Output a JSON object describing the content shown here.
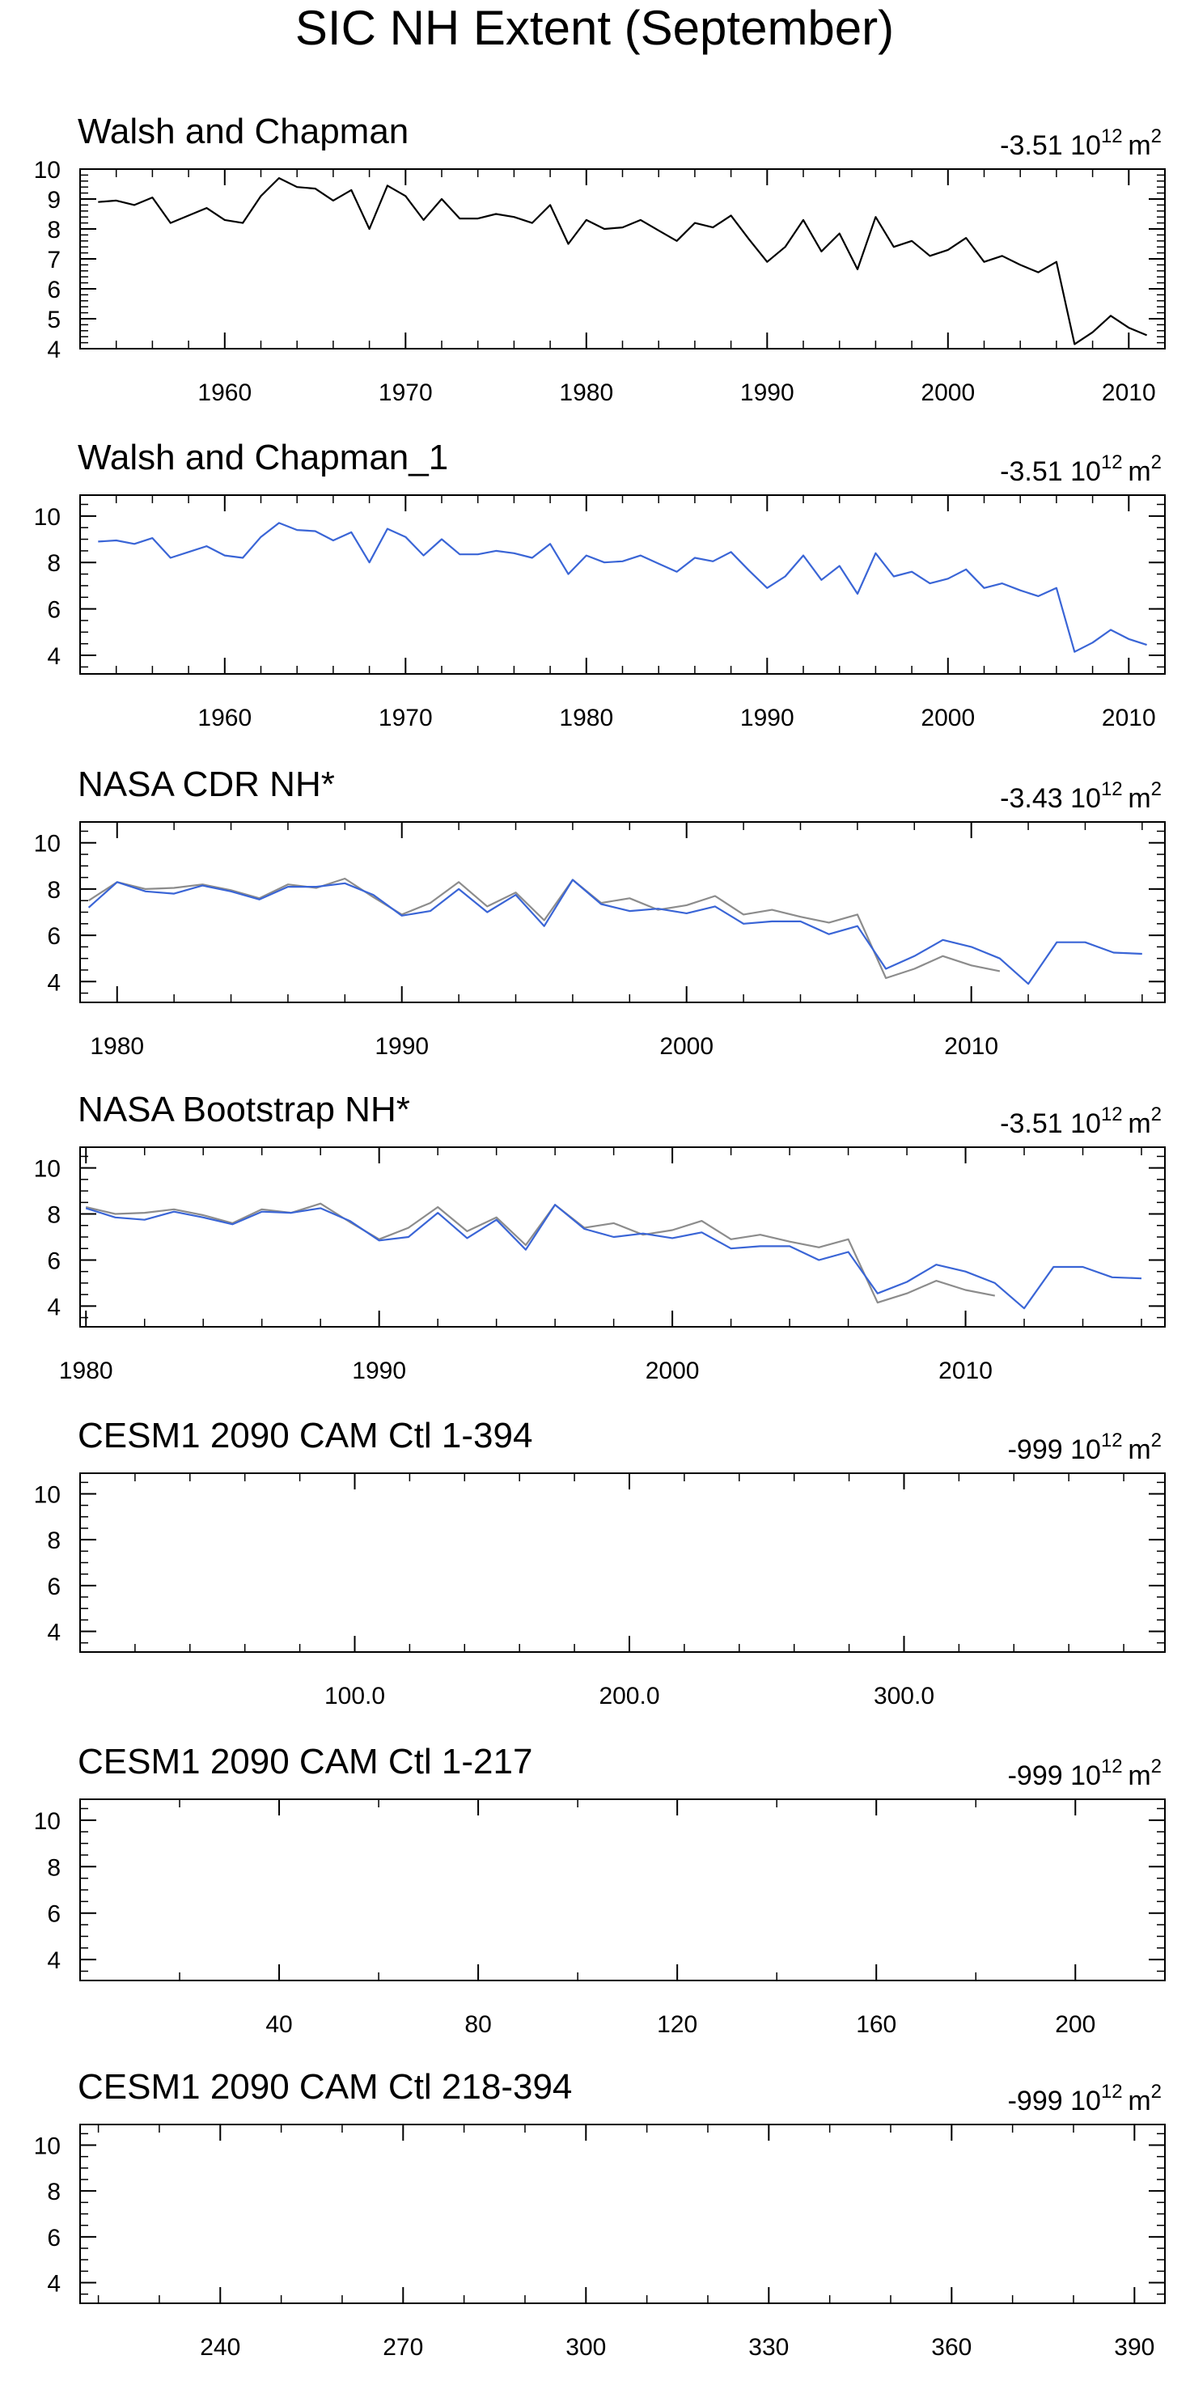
{
  "figure_title": "SIC NH Extent (September)",
  "colors": {
    "black": "#000000",
    "blue": "#3a65d6",
    "gray": "#8c8c8c",
    "axis": "#000000"
  },
  "chart_data": [
    {
      "type": "line",
      "title": "Walsh and Chapman",
      "trend_value": "-3.51",
      "trend_unit_base": "10",
      "trend_unit_exp": "12",
      "trend_unit_suffix": "m",
      "trend_unit_suffix_exp": "2",
      "xlim": [
        1952,
        2012
      ],
      "ylim": [
        4,
        10
      ],
      "y_ticks": [
        4,
        5,
        6,
        7,
        8,
        9,
        10
      ],
      "y_tick_labels": [
        "4",
        "5",
        "6",
        "7",
        "8",
        "9",
        "10"
      ],
      "x_ticks": [
        1960,
        1970,
        1980,
        1990,
        2000,
        2010
      ],
      "x_tick_labels": [
        "1960",
        "1970",
        "1980",
        "1990",
        "2000",
        "2010"
      ],
      "x_minor_step": 2,
      "y_minor_step": 0.2,
      "series": [
        {
          "name": "Walsh and Chapman",
          "color": "#000000",
          "x": [
            1953,
            1954,
            1955,
            1956,
            1957,
            1958,
            1959,
            1960,
            1961,
            1962,
            1963,
            1964,
            1965,
            1966,
            1967,
            1968,
            1969,
            1970,
            1971,
            1972,
            1973,
            1974,
            1975,
            1976,
            1977,
            1978,
            1979,
            1980,
            1981,
            1982,
            1983,
            1984,
            1985,
            1986,
            1987,
            1988,
            1989,
            1990,
            1991,
            1992,
            1993,
            1994,
            1995,
            1996,
            1997,
            1998,
            1999,
            2000,
            2001,
            2002,
            2003,
            2004,
            2005,
            2006,
            2007,
            2008,
            2009,
            2010,
            2011
          ],
          "values": [
            8.9,
            8.95,
            8.8,
            9.05,
            8.2,
            8.45,
            8.7,
            8.3,
            8.2,
            9.1,
            9.7,
            9.4,
            9.35,
            8.95,
            9.3,
            8.0,
            9.45,
            9.1,
            8.3,
            9.0,
            8.35,
            8.35,
            8.5,
            8.4,
            8.2,
            8.8,
            7.5,
            8.3,
            8.0,
            8.05,
            8.3,
            7.95,
            7.6,
            8.2,
            8.05,
            8.45,
            7.65,
            6.9,
            7.4,
            8.3,
            7.25,
            7.85,
            6.65,
            8.4,
            7.4,
            7.6,
            7.1,
            7.3,
            7.7,
            6.9,
            7.1,
            6.8,
            6.55,
            6.9,
            4.15,
            4.55,
            5.1,
            4.7,
            4.45
          ]
        }
      ]
    },
    {
      "type": "line",
      "title": "Walsh and Chapman_1",
      "trend_value": "-3.51",
      "trend_unit_base": "10",
      "trend_unit_exp": "12",
      "trend_unit_suffix": "m",
      "trend_unit_suffix_exp": "2",
      "xlim": [
        1952,
        2012
      ],
      "ylim": [
        3.2,
        10.9
      ],
      "y_ticks": [
        4,
        6,
        8,
        10
      ],
      "y_tick_labels": [
        "4",
        "6",
        "8",
        "10"
      ],
      "x_ticks": [
        1960,
        1970,
        1980,
        1990,
        2000,
        2010
      ],
      "x_tick_labels": [
        "1960",
        "1970",
        "1980",
        "1990",
        "2000",
        "2010"
      ],
      "x_minor_step": 2,
      "y_minor_step": 0.5,
      "series": [
        {
          "name": "Walsh and Chapman_1",
          "color": "#3a65d6",
          "x": [
            1953,
            1954,
            1955,
            1956,
            1957,
            1958,
            1959,
            1960,
            1961,
            1962,
            1963,
            1964,
            1965,
            1966,
            1967,
            1968,
            1969,
            1970,
            1971,
            1972,
            1973,
            1974,
            1975,
            1976,
            1977,
            1978,
            1979,
            1980,
            1981,
            1982,
            1983,
            1984,
            1985,
            1986,
            1987,
            1988,
            1989,
            1990,
            1991,
            1992,
            1993,
            1994,
            1995,
            1996,
            1997,
            1998,
            1999,
            2000,
            2001,
            2002,
            2003,
            2004,
            2005,
            2006,
            2007,
            2008,
            2009,
            2010,
            2011
          ],
          "values": [
            8.9,
            8.95,
            8.8,
            9.05,
            8.2,
            8.45,
            8.7,
            8.3,
            8.2,
            9.1,
            9.7,
            9.4,
            9.35,
            8.95,
            9.3,
            8.0,
            9.45,
            9.1,
            8.3,
            9.0,
            8.35,
            8.35,
            8.5,
            8.4,
            8.2,
            8.8,
            7.5,
            8.3,
            8.0,
            8.05,
            8.3,
            7.95,
            7.6,
            8.2,
            8.05,
            8.45,
            7.65,
            6.9,
            7.4,
            8.3,
            7.25,
            7.85,
            6.65,
            8.4,
            7.4,
            7.6,
            7.1,
            7.3,
            7.7,
            6.9,
            7.1,
            6.8,
            6.55,
            6.9,
            4.15,
            4.55,
            5.1,
            4.7,
            4.45
          ]
        }
      ]
    },
    {
      "type": "line",
      "title": "NASA CDR NH*",
      "trend_value": "-3.43",
      "trend_unit_base": "10",
      "trend_unit_exp": "12",
      "trend_unit_suffix": "m",
      "trend_unit_suffix_exp": "2",
      "xlim": [
        1978.7,
        2016.8
      ],
      "ylim": [
        3.1,
        10.9
      ],
      "y_ticks": [
        4,
        6,
        8,
        10
      ],
      "y_tick_labels": [
        "4",
        "6",
        "8",
        "10"
      ],
      "x_ticks": [
        1980,
        1990,
        2000,
        2010
      ],
      "x_tick_labels": [
        "1980",
        "1990",
        "2000",
        "2010"
      ],
      "x_minor_step": 2,
      "y_minor_step": 0.5,
      "series": [
        {
          "name": "Walsh and Chapman (reference)",
          "color": "#8c8c8c",
          "x": [
            1979,
            1980,
            1981,
            1982,
            1983,
            1984,
            1985,
            1986,
            1987,
            1988,
            1989,
            1990,
            1991,
            1992,
            1993,
            1994,
            1995,
            1996,
            1997,
            1998,
            1999,
            2000,
            2001,
            2002,
            2003,
            2004,
            2005,
            2006,
            2007,
            2008,
            2009,
            2010,
            2011
          ],
          "values": [
            7.5,
            8.3,
            8.0,
            8.05,
            8.2,
            7.95,
            7.6,
            8.2,
            8.05,
            8.45,
            7.65,
            6.9,
            7.4,
            8.3,
            7.25,
            7.85,
            6.65,
            8.4,
            7.4,
            7.6,
            7.1,
            7.3,
            7.7,
            6.9,
            7.1,
            6.8,
            6.55,
            6.9,
            4.15,
            4.55,
            5.1,
            4.7,
            4.45
          ]
        },
        {
          "name": "NASA CDR NH*",
          "color": "#3a65d6",
          "x": [
            1979,
            1980,
            1981,
            1982,
            1983,
            1984,
            1985,
            1986,
            1987,
            1988,
            1989,
            1990,
            1991,
            1992,
            1993,
            1994,
            1995,
            1996,
            1997,
            1998,
            1999,
            2000,
            2001,
            2002,
            2003,
            2004,
            2005,
            2006,
            2007,
            2008,
            2009,
            2010,
            2011,
            2012,
            2013,
            2014,
            2015,
            2016
          ],
          "values": [
            7.2,
            8.3,
            7.9,
            7.8,
            8.15,
            7.9,
            7.55,
            8.1,
            8.1,
            8.25,
            7.75,
            6.85,
            7.05,
            8.0,
            7.0,
            7.75,
            6.4,
            8.4,
            7.35,
            7.05,
            7.15,
            6.95,
            7.25,
            6.5,
            6.6,
            6.6,
            6.05,
            6.4,
            4.55,
            5.1,
            5.8,
            5.5,
            5.0,
            3.9,
            5.7,
            5.7,
            5.25,
            5.2
          ]
        }
      ]
    },
    {
      "type": "line",
      "title": "NASA Bootstrap NH*",
      "trend_value": "-3.51",
      "trend_unit_base": "10",
      "trend_unit_exp": "12",
      "trend_unit_suffix": "m",
      "trend_unit_suffix_exp": "2",
      "xlim": [
        1979.8,
        2016.8
      ],
      "ylim": [
        3.1,
        10.9
      ],
      "y_ticks": [
        4,
        6,
        8,
        10
      ],
      "y_tick_labels": [
        "4",
        "6",
        "8",
        "10"
      ],
      "x_ticks": [
        1980,
        1990,
        2000,
        2010
      ],
      "x_tick_labels": [
        "1980",
        "1990",
        "2000",
        "2010"
      ],
      "x_minor_step": 2,
      "y_minor_step": 0.5,
      "series": [
        {
          "name": "Walsh and Chapman (reference)",
          "color": "#8c8c8c",
          "x": [
            1980,
            1981,
            1982,
            1983,
            1984,
            1985,
            1986,
            1987,
            1988,
            1989,
            1990,
            1991,
            1992,
            1993,
            1994,
            1995,
            1996,
            1997,
            1998,
            1999,
            2000,
            2001,
            2002,
            2003,
            2004,
            2005,
            2006,
            2007,
            2008,
            2009,
            2010,
            2011
          ],
          "values": [
            8.3,
            8.0,
            8.05,
            8.2,
            7.95,
            7.6,
            8.2,
            8.05,
            8.45,
            7.65,
            6.9,
            7.4,
            8.3,
            7.25,
            7.85,
            6.65,
            8.4,
            7.4,
            7.6,
            7.1,
            7.3,
            7.7,
            6.9,
            7.1,
            6.8,
            6.55,
            6.9,
            4.15,
            4.55,
            5.1,
            4.7,
            4.45
          ]
        },
        {
          "name": "NASA Bootstrap NH*",
          "color": "#3a65d6",
          "x": [
            1980,
            1981,
            1982,
            1983,
            1984,
            1985,
            1986,
            1987,
            1988,
            1989,
            1990,
            1991,
            1992,
            1993,
            1994,
            1995,
            1996,
            1997,
            1998,
            1999,
            2000,
            2001,
            2002,
            2003,
            2004,
            2005,
            2006,
            2007,
            2008,
            2009,
            2010,
            2011,
            2012,
            2013,
            2014,
            2015,
            2016
          ],
          "values": [
            8.25,
            7.85,
            7.75,
            8.1,
            7.85,
            7.55,
            8.1,
            8.05,
            8.25,
            7.7,
            6.85,
            7.0,
            8.05,
            6.95,
            7.75,
            6.45,
            8.4,
            7.35,
            7.0,
            7.15,
            6.95,
            7.2,
            6.5,
            6.6,
            6.6,
            6.0,
            6.35,
            4.55,
            5.05,
            5.8,
            5.5,
            5.0,
            3.9,
            5.7,
            5.7,
            5.25,
            5.2
          ]
        }
      ]
    },
    {
      "type": "line",
      "title": "CESM1 2090 CAM Ctl 1-394",
      "trend_value": "-999",
      "trend_unit_base": "10",
      "trend_unit_exp": "12",
      "trend_unit_suffix": "m",
      "trend_unit_suffix_exp": "2",
      "xlim": [
        0,
        395
      ],
      "ylim": [
        3.1,
        10.9
      ],
      "y_ticks": [
        4,
        6,
        8,
        10
      ],
      "y_tick_labels": [
        "4",
        "6",
        "8",
        "10"
      ],
      "x_ticks": [
        100,
        200,
        300
      ],
      "x_tick_labels": [
        "100.0",
        "200.0",
        "300.0"
      ],
      "x_minor_step": 20,
      "y_minor_step": 0.5,
      "series": []
    },
    {
      "type": "line",
      "title": "CESM1 2090 CAM Ctl 1-217",
      "trend_value": "-999",
      "trend_unit_base": "10",
      "trend_unit_exp": "12",
      "trend_unit_suffix": "m",
      "trend_unit_suffix_exp": "2",
      "xlim": [
        0,
        218
      ],
      "ylim": [
        3.1,
        10.9
      ],
      "y_ticks": [
        4,
        6,
        8,
        10
      ],
      "y_tick_labels": [
        "4",
        "6",
        "8",
        "10"
      ],
      "x_ticks": [
        40,
        80,
        120,
        160,
        200
      ],
      "x_tick_labels": [
        "40",
        "80",
        "120",
        "160",
        "200"
      ],
      "x_minor_step": 20,
      "y_minor_step": 0.5,
      "series": []
    },
    {
      "type": "line",
      "title": "CESM1 2090 CAM Ctl 218-394",
      "trend_value": "-999",
      "trend_unit_base": "10",
      "trend_unit_exp": "12",
      "trend_unit_suffix": "m",
      "trend_unit_suffix_exp": "2",
      "xlim": [
        217,
        395
      ],
      "ylim": [
        3.1,
        10.9
      ],
      "y_ticks": [
        4,
        6,
        8,
        10
      ],
      "y_tick_labels": [
        "4",
        "6",
        "8",
        "10"
      ],
      "x_ticks": [
        240,
        270,
        300,
        330,
        360,
        390
      ],
      "x_tick_labels": [
        "240",
        "270",
        "300",
        "330",
        "360",
        "390"
      ],
      "x_minor_step": 10,
      "y_minor_step": 0.5,
      "series": []
    }
  ]
}
